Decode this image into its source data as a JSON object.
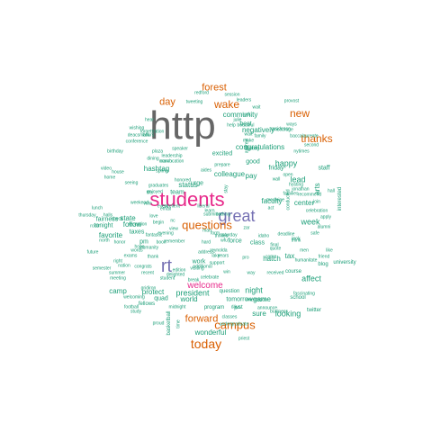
{
  "colors": {
    "teal": "#1b9e77",
    "orange": "#d95f02",
    "purple": "#7570b3",
    "magenta": "#e7298a",
    "gray": "#666666"
  },
  "words": [
    {
      "text": "http",
      "color": "gray"
    },
    {
      "text": "students",
      "color": "magenta"
    },
    {
      "text": "great",
      "color": "purple"
    },
    {
      "text": "today",
      "color": "orange"
    },
    {
      "text": "rt",
      "color": "purple"
    },
    {
      "text": "questions",
      "color": "orange"
    },
    {
      "text": "campus",
      "color": "orange"
    },
    {
      "text": "thanks",
      "color": "orange"
    },
    {
      "text": "forward",
      "color": "orange"
    },
    {
      "text": "wake",
      "color": "orange"
    },
    {
      "text": "forest",
      "color": "orange"
    },
    {
      "text": "new",
      "color": "orange"
    },
    {
      "text": "day",
      "color": "orange"
    },
    {
      "text": "welcome",
      "color": "magenta"
    },
    {
      "text": "looking",
      "color": "teal"
    },
    {
      "text": "week",
      "color": "teal"
    },
    {
      "text": "president",
      "color": "teal"
    },
    {
      "text": "favorite",
      "color": "teal"
    },
    {
      "text": "state",
      "color": "teal"
    },
    {
      "text": "night",
      "color": "teal"
    },
    {
      "text": "wonderful",
      "color": "teal"
    },
    {
      "text": "protect",
      "color": "teal"
    },
    {
      "text": "follow",
      "color": "teal"
    },
    {
      "text": "status",
      "color": "teal"
    },
    {
      "text": "colleague",
      "color": "teal"
    },
    {
      "text": "hashtag",
      "color": "teal"
    },
    {
      "text": "congratulations",
      "color": "teal"
    },
    {
      "text": "community",
      "color": "teal"
    },
    {
      "text": "negatively",
      "color": "teal"
    },
    {
      "text": "happy",
      "color": "teal"
    },
    {
      "text": "lead",
      "color": "teal"
    },
    {
      "text": "pay",
      "color": "teal"
    },
    {
      "text": "game",
      "color": "teal"
    },
    {
      "text": "sure",
      "color": "teal"
    },
    {
      "text": "affect",
      "color": "teal"
    },
    {
      "text": "tax",
      "color": "teal"
    },
    {
      "text": "hatch",
      "color": "teal"
    },
    {
      "text": "faculty",
      "color": "teal"
    },
    {
      "text": "staff",
      "color": "teal"
    },
    {
      "text": "camp",
      "color": "teal"
    },
    {
      "text": "world",
      "color": "teal"
    },
    {
      "text": "work",
      "color": "teal"
    },
    {
      "text": "team",
      "color": "teal"
    },
    {
      "text": "taxes",
      "color": "teal"
    },
    {
      "text": "tonight",
      "color": "teal"
    },
    {
      "text": "fairness",
      "color": "teal"
    },
    {
      "text": "pm",
      "color": "teal"
    },
    {
      "text": "urge",
      "color": "teal"
    },
    {
      "text": "best",
      "color": "teal"
    },
    {
      "text": "good",
      "color": "teal"
    },
    {
      "text": "friday",
      "color": "teal"
    },
    {
      "text": "excited",
      "color": "teal"
    },
    {
      "text": "force",
      "color": "teal"
    },
    {
      "text": "class",
      "color": "teal"
    },
    {
      "text": "tomorrow",
      "color": "teal"
    },
    {
      "text": "quad",
      "color": "teal"
    },
    {
      "text": "basketball",
      "color": "teal"
    },
    {
      "text": "fellows",
      "color": "teal"
    },
    {
      "text": "program",
      "color": "teal"
    },
    {
      "text": "question",
      "color": "teal"
    },
    {
      "text": "just",
      "color": "teal"
    },
    {
      "text": "school",
      "color": "teal"
    },
    {
      "text": "course",
      "color": "teal"
    },
    {
      "text": "blog",
      "color": "teal"
    },
    {
      "text": "twitter",
      "color": "teal"
    },
    {
      "text": "university",
      "color": "teal"
    },
    {
      "text": "interested",
      "color": "teal"
    },
    {
      "text": "session",
      "color": "teal"
    },
    {
      "text": "leaders",
      "color": "teal"
    },
    {
      "text": "provost",
      "color": "teal"
    },
    {
      "text": "redford",
      "color": "teal"
    },
    {
      "text": "tweeting",
      "color": "teal"
    },
    {
      "text": "luck",
      "color": "teal"
    },
    {
      "text": "julie",
      "color": "teal"
    },
    {
      "text": "hear",
      "color": "teal"
    },
    {
      "text": "wishing",
      "color": "teal"
    },
    {
      "text": "conference",
      "color": "teal"
    },
    {
      "text": "birthday",
      "color": "teal"
    },
    {
      "text": "video",
      "color": "teal"
    },
    {
      "text": "home",
      "color": "teal"
    },
    {
      "text": "lunch",
      "color": "teal"
    },
    {
      "text": "halls",
      "color": "teal"
    },
    {
      "text": "thursday",
      "color": "teal"
    },
    {
      "text": "room",
      "color": "teal"
    },
    {
      "text": "north",
      "color": "teal"
    },
    {
      "text": "future",
      "color": "teal"
    },
    {
      "text": "semester",
      "color": "teal"
    },
    {
      "text": "summer",
      "color": "teal"
    },
    {
      "text": "meeting",
      "color": "teal"
    },
    {
      "text": "football",
      "color": "teal"
    },
    {
      "text": "welcoming",
      "color": "teal"
    },
    {
      "text": "study",
      "color": "teal"
    },
    {
      "text": "proud",
      "color": "teal"
    },
    {
      "text": "time",
      "color": "teal"
    },
    {
      "text": "midnight",
      "color": "teal"
    },
    {
      "text": "classes",
      "color": "teal"
    },
    {
      "text": "undergraduate",
      "color": "teal"
    },
    {
      "text": "priest",
      "color": "teal"
    },
    {
      "text": "orientation",
      "color": "teal"
    },
    {
      "text": "days",
      "color": "teal"
    },
    {
      "text": "announce",
      "color": "teal"
    },
    {
      "text": "business",
      "color": "teal"
    },
    {
      "text": "fascinating",
      "color": "teal"
    },
    {
      "text": "speaker",
      "color": "teal"
    },
    {
      "text": "leadership",
      "color": "teal"
    },
    {
      "text": "convocation",
      "color": "teal"
    },
    {
      "text": "honored",
      "color": "teal"
    },
    {
      "text": "prepare",
      "color": "teal"
    },
    {
      "text": "starting",
      "color": "teal"
    },
    {
      "text": "make",
      "color": "teal"
    },
    {
      "text": "wait",
      "color": "teal"
    },
    {
      "text": "encourage",
      "color": "teal"
    },
    {
      "text": "residence",
      "color": "teal"
    },
    {
      "text": "baccalaureate",
      "color": "teal"
    },
    {
      "text": "second",
      "color": "teal"
    },
    {
      "text": "nytimes",
      "color": "teal"
    },
    {
      "text": "open",
      "color": "teal"
    },
    {
      "text": "hosting",
      "color": "teal"
    },
    {
      "text": "jonathan",
      "color": "teal"
    },
    {
      "text": "recommend",
      "color": "teal"
    },
    {
      "text": "join",
      "color": "teal"
    },
    {
      "text": "hall",
      "color": "teal"
    },
    {
      "text": "celebration",
      "color": "teal"
    },
    {
      "text": "alumni",
      "color": "teal"
    },
    {
      "text": "apply",
      "color": "teal"
    },
    {
      "text": "safe",
      "color": "teal"
    },
    {
      "text": "like",
      "color": "teal"
    },
    {
      "text": "friend",
      "color": "teal"
    },
    {
      "text": "humanitate",
      "color": "teal"
    },
    {
      "text": "men",
      "color": "teal"
    },
    {
      "text": "think",
      "color": "teal"
    },
    {
      "text": "look",
      "color": "teal"
    },
    {
      "text": "deadline",
      "color": "teal"
    },
    {
      "text": "quote",
      "color": "teal"
    },
    {
      "text": "come",
      "color": "teal"
    },
    {
      "text": "idaho",
      "color": "teal"
    },
    {
      "text": "final",
      "color": "teal"
    },
    {
      "text": "received",
      "color": "teal"
    },
    {
      "text": "plaza",
      "color": "teal"
    },
    {
      "text": "hard",
      "color": "teal"
    },
    {
      "text": "address",
      "color": "teal"
    },
    {
      "text": "reynolda",
      "color": "teal"
    },
    {
      "text": "years",
      "color": "teal"
    },
    {
      "text": "support",
      "color": "teal"
    },
    {
      "text": "additional",
      "color": "teal"
    },
    {
      "text": "celebrate",
      "color": "teal"
    },
    {
      "text": "visiting",
      "color": "teal"
    },
    {
      "text": "edition",
      "color": "teal"
    },
    {
      "text": "delighted",
      "color": "teal"
    },
    {
      "text": "student",
      "color": "teal"
    },
    {
      "text": "recent",
      "color": "teal"
    },
    {
      "text": "congrats",
      "color": "teal"
    },
    {
      "text": "nation",
      "color": "teal"
    },
    {
      "text": "right",
      "color": "teal"
    },
    {
      "text": "exams",
      "color": "teal"
    },
    {
      "text": "words",
      "color": "teal"
    },
    {
      "text": "humanity",
      "color": "teal"
    },
    {
      "text": "book",
      "color": "teal"
    },
    {
      "text": "fantastic",
      "color": "teal"
    },
    {
      "text": "thank",
      "color": "teal"
    },
    {
      "text": "evening",
      "color": "teal"
    },
    {
      "text": "reception",
      "color": "teal"
    },
    {
      "text": "weekend",
      "color": "teal"
    },
    {
      "text": "love",
      "color": "teal"
    },
    {
      "text": "excellent",
      "color": "teal"
    },
    {
      "text": "hope",
      "color": "teal"
    },
    {
      "text": "vote",
      "color": "teal"
    },
    {
      "text": "thrilled",
      "color": "teal"
    },
    {
      "text": "saturday",
      "color": "teal"
    },
    {
      "text": "submitted",
      "color": "teal"
    },
    {
      "text": "wfu",
      "color": "teal"
    },
    {
      "text": "coming",
      "color": "teal"
    },
    {
      "text": "family",
      "color": "teal"
    },
    {
      "text": "wait",
      "color": "teal"
    },
    {
      "text": "view",
      "color": "teal"
    },
    {
      "text": "help",
      "color": "teal"
    },
    {
      "text": "hours",
      "color": "teal"
    },
    {
      "text": "deacsmark",
      "color": "teal"
    },
    {
      "text": "forgettration",
      "color": "teal"
    },
    {
      "text": "enjoyed",
      "color": "teal"
    },
    {
      "text": "graduates",
      "color": "teal"
    },
    {
      "text": "march",
      "color": "teal"
    },
    {
      "text": "dining",
      "color": "teal"
    },
    {
      "text": "event",
      "color": "teal"
    },
    {
      "text": "form",
      "color": "teal"
    },
    {
      "text": "remember",
      "color": "teal"
    },
    {
      "text": "learn",
      "color": "teal"
    },
    {
      "text": "begin",
      "color": "teal"
    },
    {
      "text": "seeing",
      "color": "teal"
    },
    {
      "text": "honor",
      "color": "teal"
    },
    {
      "text": "gridiron",
      "color": "teal"
    },
    {
      "text": "break",
      "color": "teal"
    },
    {
      "text": "spring",
      "color": "teal"
    },
    {
      "text": "win",
      "color": "teal"
    },
    {
      "text": "house",
      "color": "teal"
    },
    {
      "text": "families",
      "color": "teal"
    },
    {
      "text": "center",
      "color": "teal"
    },
    {
      "text": "arts",
      "color": "teal"
    },
    {
      "text": "stay",
      "color": "teal"
    },
    {
      "text": "wall",
      "color": "teal"
    },
    {
      "text": "life",
      "color": "teal"
    },
    {
      "text": "beautiful",
      "color": "teal"
    },
    {
      "text": "ways",
      "color": "teal"
    },
    {
      "text": "lake",
      "color": "teal"
    },
    {
      "text": "nc",
      "color": "teal"
    },
    {
      "text": "act",
      "color": "teal"
    },
    {
      "text": "medicine",
      "color": "teal"
    },
    {
      "text": "conducted",
      "color": "teal"
    },
    {
      "text": "liberal",
      "color": "teal"
    },
    {
      "text": "way",
      "color": "teal"
    },
    {
      "text": "pro",
      "color": "teal"
    },
    {
      "text": "zar",
      "color": "teal"
    },
    {
      "text": "man",
      "color": "teal"
    },
    {
      "text": "andrew",
      "color": "teal"
    },
    {
      "text": "aides",
      "color": "teal"
    },
    {
      "text": "email",
      "color": "teal"
    },
    {
      "text": "check",
      "color": "teal"
    },
    {
      "text": "ice",
      "color": "teal"
    },
    {
      "text": "year",
      "color": "teal"
    },
    {
      "text": "times",
      "color": "teal"
    },
    {
      "text": "sure",
      "color": "teal"
    },
    {
      "text": "thing",
      "color": "teal"
    },
    {
      "text": "child",
      "color": "teal"
    },
    {
      "text": "ceremony",
      "color": "teal"
    },
    {
      "text": "free",
      "color": "teal"
    },
    {
      "text": "bill",
      "color": "teal"
    },
    {
      "text": "attend",
      "color": "teal"
    }
  ]
}
